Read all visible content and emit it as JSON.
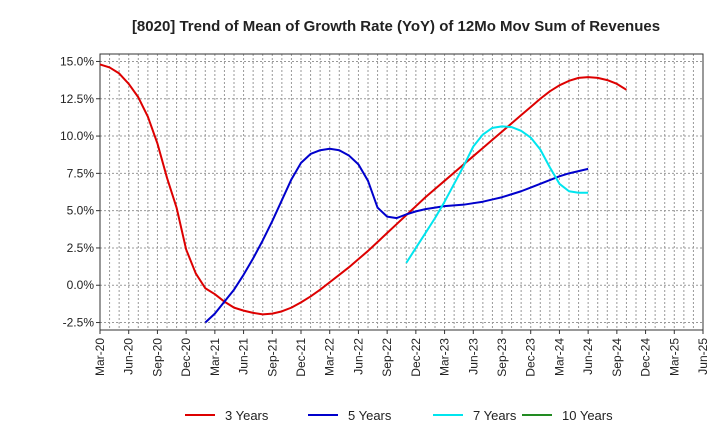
{
  "chart_data": {
    "type": "line",
    "title": "[8020]  Trend of Mean of Growth Rate (YoY) of 12Mo Mov Sum of Revenues",
    "xlabel": "",
    "ylabel": "",
    "x_tick_labels": [
      "Mar-20",
      "Jun-20",
      "Sep-20",
      "Dec-20",
      "Mar-21",
      "Jun-21",
      "Sep-21",
      "Dec-21",
      "Mar-22",
      "Jun-22",
      "Sep-22",
      "Dec-22",
      "Mar-23",
      "Jun-23",
      "Sep-23",
      "Dec-23",
      "Mar-24",
      "Jun-24",
      "Sep-24",
      "Dec-24",
      "Mar-25",
      "Jun-25"
    ],
    "y_tick_labels": [
      "15.0%",
      "12.5%",
      "10.0%",
      "7.5%",
      "5.0%",
      "2.5%",
      "0.0%",
      "-2.5%"
    ],
    "y_ticks": [
      15.0,
      12.5,
      10.0,
      7.5,
      5.0,
      2.5,
      0.0,
      -2.5
    ],
    "ylim": [
      -3.0,
      15.5
    ],
    "xlim": [
      0,
      63
    ],
    "grid": true,
    "legend_position": "bottom",
    "series": [
      {
        "name": "3 Years",
        "color": "#dd0000",
        "points": [
          [
            0,
            14.8
          ],
          [
            1,
            14.6
          ],
          [
            2,
            14.2
          ],
          [
            3,
            13.5
          ],
          [
            4,
            12.6
          ],
          [
            5,
            11.3
          ],
          [
            6,
            9.5
          ],
          [
            7,
            7.2
          ],
          [
            8,
            5.2
          ],
          [
            9,
            2.4
          ],
          [
            10,
            0.8
          ],
          [
            11,
            -0.2
          ],
          [
            12,
            -0.6
          ],
          [
            13,
            -1.1
          ],
          [
            14,
            -1.5
          ],
          [
            15,
            -1.7
          ],
          [
            16,
            -1.85
          ],
          [
            17,
            -1.95
          ],
          [
            18,
            -1.9
          ],
          [
            19,
            -1.75
          ],
          [
            20,
            -1.5
          ],
          [
            21,
            -1.15
          ],
          [
            22,
            -0.75
          ],
          [
            23,
            -0.3
          ],
          [
            24,
            0.2
          ],
          [
            25,
            0.7
          ],
          [
            26,
            1.2
          ],
          [
            27,
            1.75
          ],
          [
            28,
            2.3
          ],
          [
            29,
            2.9
          ],
          [
            30,
            3.5
          ],
          [
            31,
            4.1
          ],
          [
            32,
            4.7
          ],
          [
            33,
            5.3
          ],
          [
            34,
            5.9
          ],
          [
            35,
            6.45
          ],
          [
            36,
            7.0
          ],
          [
            37,
            7.55
          ],
          [
            38,
            8.1
          ],
          [
            39,
            8.65
          ],
          [
            40,
            9.2
          ],
          [
            41,
            9.75
          ],
          [
            42,
            10.3
          ],
          [
            43,
            10.85
          ],
          [
            44,
            11.4
          ],
          [
            45,
            11.95
          ],
          [
            46,
            12.5
          ],
          [
            47,
            13.0
          ],
          [
            48,
            13.4
          ],
          [
            49,
            13.7
          ],
          [
            50,
            13.9
          ],
          [
            51,
            13.95
          ],
          [
            52,
            13.9
          ],
          [
            53,
            13.75
          ],
          [
            54,
            13.5
          ],
          [
            55,
            13.1
          ]
        ]
      },
      {
        "name": "5 Years",
        "color": "#0000cc",
        "points": [
          [
            11,
            -2.5
          ],
          [
            12,
            -1.9
          ],
          [
            13,
            -1.1
          ],
          [
            14,
            -0.3
          ],
          [
            15,
            0.7
          ],
          [
            16,
            1.8
          ],
          [
            17,
            3.0
          ],
          [
            18,
            4.3
          ],
          [
            19,
            5.7
          ],
          [
            20,
            7.1
          ],
          [
            21,
            8.2
          ],
          [
            22,
            8.8
          ],
          [
            23,
            9.05
          ],
          [
            24,
            9.15
          ],
          [
            25,
            9.05
          ],
          [
            26,
            8.7
          ],
          [
            27,
            8.1
          ],
          [
            28,
            7.0
          ],
          [
            29,
            5.2
          ],
          [
            30,
            4.6
          ],
          [
            31,
            4.5
          ],
          [
            32,
            4.75
          ],
          [
            33,
            4.95
          ],
          [
            34,
            5.1
          ],
          [
            35,
            5.2
          ],
          [
            36,
            5.3
          ],
          [
            37,
            5.35
          ],
          [
            38,
            5.4
          ],
          [
            39,
            5.5
          ],
          [
            40,
            5.6
          ],
          [
            41,
            5.75
          ],
          [
            42,
            5.9
          ],
          [
            43,
            6.1
          ],
          [
            44,
            6.3
          ],
          [
            45,
            6.55
          ],
          [
            46,
            6.8
          ],
          [
            47,
            7.05
          ],
          [
            48,
            7.3
          ],
          [
            49,
            7.5
          ],
          [
            50,
            7.65
          ],
          [
            51,
            7.8
          ]
        ]
      },
      {
        "name": "7 Years",
        "color": "#00e5ee",
        "points": [
          [
            32,
            1.5
          ],
          [
            33,
            2.5
          ],
          [
            34,
            3.5
          ],
          [
            35,
            4.5
          ],
          [
            36,
            5.6
          ],
          [
            37,
            6.8
          ],
          [
            38,
            8.0
          ],
          [
            39,
            9.3
          ],
          [
            40,
            10.1
          ],
          [
            41,
            10.55
          ],
          [
            42,
            10.65
          ],
          [
            43,
            10.6
          ],
          [
            44,
            10.35
          ],
          [
            45,
            9.9
          ],
          [
            46,
            9.1
          ],
          [
            47,
            7.9
          ],
          [
            48,
            6.8
          ],
          [
            49,
            6.3
          ],
          [
            50,
            6.2
          ],
          [
            51,
            6.2
          ]
        ]
      },
      {
        "name": "10 Years",
        "color": "#228b22",
        "points": []
      }
    ]
  }
}
